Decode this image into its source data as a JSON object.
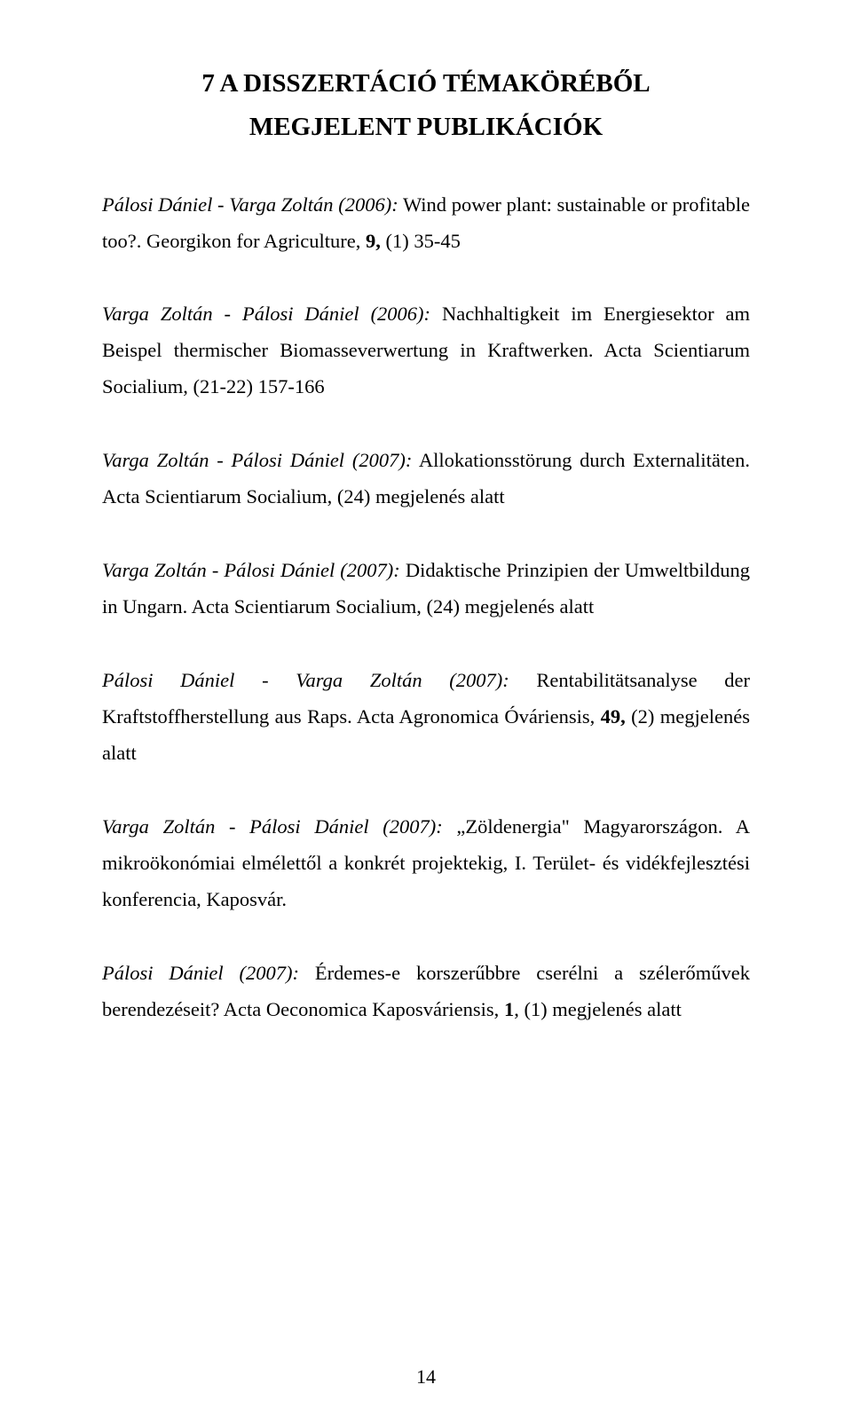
{
  "heading_line1": "7   A DISSZERTÁCIÓ TÉMAKÖRÉBŐL",
  "heading_line2": "MEGJELENT PUBLIKÁCIÓK",
  "entries": {
    "e1": {
      "authors": "Pálosi Dániel - Varga Zoltán (2006):",
      "text1": " Wind power plant: sustainable or profitable too?. Georgikon for Agriculture, ",
      "vol": "9,",
      "text2": " (1) 35-45"
    },
    "e2": {
      "authors": "Varga Zoltán - Pálosi Dániel (2006):",
      "text1": " Nachhaltigkeit im Energiesektor am Beispel thermischer Biomasseverwertung in Kraftwerken. Acta Scientiarum Socialium, (21-22) 157-166"
    },
    "e3": {
      "authors": "Varga Zoltán - Pálosi Dániel (2007):",
      "text1": " Allokationsstörung durch Externalitäten. Acta Scientiarum Socialium, (24) megjelenés alatt"
    },
    "e4": {
      "authors": "Varga Zoltán - Pálosi Dániel (2007):",
      "text1": " Didaktische Prinzipien der Umweltbildung in Ungarn. Acta Scientiarum Socialium, (24) megjelenés alatt"
    },
    "e5": {
      "authors": "Pálosi Dániel - Varga Zoltán (2007):",
      "text1": " Rentabilitätsanalyse der Kraftstoffherstellung aus Raps. Acta Agronomica Óváriensis, ",
      "vol": "49,",
      "text2": " (2) megjelenés alatt"
    },
    "e6": {
      "authors": "Varga Zoltán - Pálosi Dániel (2007):",
      "text1": " „Zöldenergia\" Magyarországon. A mikroökonómiai elmélettől a konkrét projektekig, I. Terület- és vidékfejlesztési konferencia, Kaposvár."
    },
    "e7": {
      "authors": "Pálosi Dániel (2007):",
      "text1": " Érdemes-e korszerűbbre cserélni a szélerőművek berendezéseit? Acta Oeconomica Kaposváriensis, ",
      "vol": "1",
      "text2": ", (1) megjelenés alatt"
    }
  },
  "page_number": "14"
}
